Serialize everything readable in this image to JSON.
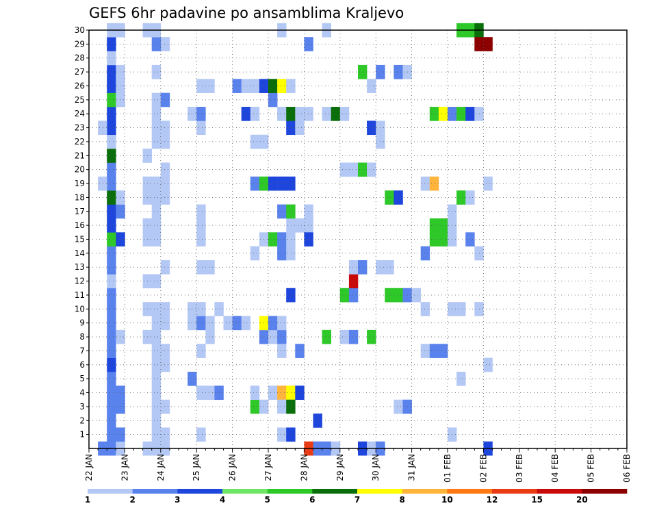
{
  "chart_data": {
    "type": "heatmap",
    "title": "GEFS 6hr padavine po ansamblima Kraljevo",
    "y_range": [
      0,
      30
    ],
    "y_ticks": [
      "1",
      "2",
      "3",
      "4",
      "5",
      "6",
      "7",
      "8",
      "9",
      "10",
      "11",
      "12",
      "13",
      "14",
      "15",
      "16",
      "17",
      "18",
      "19",
      "20",
      "21",
      "22",
      "23",
      "24",
      "25",
      "26",
      "27",
      "28",
      "29",
      "30"
    ],
    "x_unit": "6-hour step from 22 JAN 00 UTC",
    "x_range": [
      0,
      60
    ],
    "x_tick_labels": [
      "22 JAN",
      "23 JAN",
      "24 JAN",
      "25 JAN",
      "26 JAN",
      "27 JAN",
      "28 JAN",
      "29 JAN",
      "30 JAN",
      "31 JAN",
      "01 FEB",
      "02 FEB",
      "03 FEB",
      "04 FEB",
      "05 FEB",
      "06 FEB"
    ],
    "grid": true,
    "colorbar": {
      "labels": [
        "1",
        "2",
        "3",
        "4",
        "5",
        "6",
        "7",
        "8",
        "10",
        "12",
        "15",
        "20"
      ],
      "colors": [
        "#b4c8f5",
        "#5a82ec",
        "#1e46dc",
        "#6ee664",
        "#2ec828",
        "#0a6e0a",
        "#ffff00",
        "#ffb43c",
        "#ff7814",
        "#ea3c14",
        "#c80a0a",
        "#8c0000"
      ]
    },
    "cells_legend": "each cell = [time step, ensemble member, color class index 0-11]",
    "cells": [
      [
        1,
        0,
        1
      ],
      [
        2,
        0,
        1
      ],
      [
        3,
        0,
        0
      ],
      [
        2,
        1,
        1
      ],
      [
        3,
        1,
        1
      ],
      [
        2,
        2,
        1
      ],
      [
        2,
        3,
        1
      ],
      [
        3,
        3,
        1
      ],
      [
        2,
        4,
        1
      ],
      [
        3,
        4,
        1
      ],
      [
        2,
        5,
        1
      ],
      [
        2,
        6,
        2
      ],
      [
        2,
        7,
        1
      ],
      [
        2,
        8,
        1
      ],
      [
        3,
        8,
        0
      ],
      [
        2,
        9,
        1
      ],
      [
        2,
        10,
        1
      ],
      [
        2,
        11,
        1
      ],
      [
        2,
        12,
        0
      ],
      [
        2,
        13,
        1
      ],
      [
        2,
        14,
        1
      ],
      [
        2,
        15,
        4
      ],
      [
        3,
        15,
        2
      ],
      [
        2,
        16,
        2
      ],
      [
        2,
        17,
        2
      ],
      [
        3,
        17,
        1
      ],
      [
        2,
        18,
        5
      ],
      [
        3,
        18,
        0
      ],
      [
        2,
        19,
        1
      ],
      [
        1,
        19,
        0
      ],
      [
        2,
        20,
        1
      ],
      [
        2,
        21,
        5
      ],
      [
        2,
        22,
        0
      ],
      [
        2,
        23,
        2
      ],
      [
        1,
        23,
        0
      ],
      [
        2,
        24,
        2
      ],
      [
        2,
        25,
        4
      ],
      [
        3,
        25,
        0
      ],
      [
        2,
        26,
        2
      ],
      [
        3,
        26,
        0
      ],
      [
        2,
        27,
        2
      ],
      [
        3,
        27,
        0
      ],
      [
        2,
        28,
        0
      ],
      [
        2,
        29,
        2
      ],
      [
        2,
        30,
        0
      ],
      [
        3,
        30,
        0
      ],
      [
        6,
        0,
        0
      ],
      [
        7,
        0,
        0
      ],
      [
        8,
        0,
        0
      ],
      [
        7,
        1,
        0
      ],
      [
        8,
        1,
        0
      ],
      [
        7,
        2,
        0
      ],
      [
        7,
        3,
        0
      ],
      [
        8,
        3,
        0
      ],
      [
        7,
        4,
        0
      ],
      [
        7,
        5,
        0
      ],
      [
        7,
        6,
        0
      ],
      [
        8,
        6,
        0
      ],
      [
        7,
        7,
        0
      ],
      [
        8,
        7,
        0
      ],
      [
        6,
        8,
        0
      ],
      [
        7,
        8,
        0
      ],
      [
        7,
        9,
        0
      ],
      [
        8,
        9,
        0
      ],
      [
        6,
        10,
        0
      ],
      [
        7,
        10,
        0
      ],
      [
        8,
        10,
        0
      ],
      [
        6,
        12,
        0
      ],
      [
        7,
        12,
        0
      ],
      [
        8,
        13,
        0
      ],
      [
        6,
        15,
        0
      ],
      [
        7,
        15,
        0
      ],
      [
        6,
        16,
        0
      ],
      [
        7,
        16,
        0
      ],
      [
        7,
        17,
        0
      ],
      [
        6,
        18,
        0
      ],
      [
        7,
        18,
        0
      ],
      [
        8,
        18,
        0
      ],
      [
        6,
        19,
        0
      ],
      [
        7,
        19,
        0
      ],
      [
        8,
        19,
        0
      ],
      [
        8,
        20,
        0
      ],
      [
        6,
        21,
        0
      ],
      [
        7,
        22,
        0
      ],
      [
        8,
        22,
        0
      ],
      [
        7,
        23,
        0
      ],
      [
        8,
        23,
        0
      ],
      [
        7,
        24,
        0
      ],
      [
        7,
        25,
        0
      ],
      [
        8,
        25,
        1
      ],
      [
        7,
        27,
        0
      ],
      [
        8,
        29,
        0
      ],
      [
        7,
        29,
        1
      ],
      [
        6,
        30,
        0
      ],
      [
        7,
        30,
        0
      ],
      [
        12,
        1,
        0
      ],
      [
        12,
        4,
        0
      ],
      [
        13,
        4,
        0
      ],
      [
        14,
        4,
        1
      ],
      [
        11,
        5,
        1
      ],
      [
        12,
        7,
        0
      ],
      [
        13,
        8,
        0
      ],
      [
        11,
        9,
        0
      ],
      [
        12,
        9,
        1
      ],
      [
        13,
        9,
        0
      ],
      [
        11,
        10,
        0
      ],
      [
        12,
        10,
        0
      ],
      [
        14,
        10,
        0
      ],
      [
        12,
        13,
        0
      ],
      [
        13,
        13,
        0
      ],
      [
        12,
        15,
        0
      ],
      [
        12,
        16,
        0
      ],
      [
        12,
        17,
        0
      ],
      [
        12,
        23,
        0
      ],
      [
        11,
        24,
        0
      ],
      [
        12,
        24,
        1
      ],
      [
        12,
        26,
        0
      ],
      [
        13,
        26,
        0
      ],
      [
        15,
        9,
        0
      ],
      [
        16,
        9,
        1
      ],
      [
        17,
        9,
        0
      ],
      [
        17,
        24,
        2
      ],
      [
        18,
        24,
        0
      ],
      [
        16,
        26,
        1
      ],
      [
        17,
        26,
        0
      ],
      [
        18,
        3,
        4
      ],
      [
        19,
        3,
        0
      ],
      [
        18,
        4,
        0
      ],
      [
        20,
        4,
        0
      ],
      [
        21,
        4,
        7
      ],
      [
        22,
        4,
        6
      ],
      [
        23,
        4,
        2
      ],
      [
        21,
        3,
        0
      ],
      [
        22,
        3,
        5
      ],
      [
        21,
        1,
        0
      ],
      [
        22,
        1,
        2
      ],
      [
        19,
        8,
        1
      ],
      [
        20,
        8,
        0
      ],
      [
        21,
        8,
        1
      ],
      [
        19,
        9,
        6
      ],
      [
        20,
        9,
        1
      ],
      [
        21,
        9,
        0
      ],
      [
        21,
        7,
        0
      ],
      [
        23,
        7,
        1
      ],
      [
        22,
        11,
        2
      ],
      [
        18,
        14,
        0
      ],
      [
        21,
        14,
        1
      ],
      [
        22,
        14,
        0
      ],
      [
        19,
        15,
        0
      ],
      [
        20,
        15,
        4
      ],
      [
        21,
        15,
        1
      ],
      [
        22,
        15,
        0
      ],
      [
        22,
        16,
        0
      ],
      [
        23,
        16,
        0
      ],
      [
        24,
        16,
        0
      ],
      [
        24,
        15,
        2
      ],
      [
        21,
        17,
        1
      ],
      [
        22,
        17,
        4
      ],
      [
        24,
        17,
        0
      ],
      [
        18,
        19,
        1
      ],
      [
        19,
        19,
        4
      ],
      [
        20,
        19,
        2
      ],
      [
        21,
        19,
        2
      ],
      [
        22,
        19,
        2
      ],
      [
        18,
        22,
        0
      ],
      [
        19,
        22,
        0
      ],
      [
        22,
        23,
        2
      ],
      [
        23,
        23,
        0
      ],
      [
        21,
        24,
        0
      ],
      [
        22,
        24,
        5
      ],
      [
        23,
        24,
        0
      ],
      [
        24,
        24,
        0
      ],
      [
        26,
        24,
        0
      ],
      [
        27,
        24,
        5
      ],
      [
        28,
        24,
        0
      ],
      [
        20,
        25,
        1
      ],
      [
        18,
        26,
        0
      ],
      [
        19,
        26,
        2
      ],
      [
        20,
        26,
        5
      ],
      [
        21,
        26,
        6
      ],
      [
        22,
        26,
        0
      ],
      [
        24,
        29,
        1
      ],
      [
        21,
        30,
        0
      ],
      [
        25,
        2,
        2
      ],
      [
        24,
        0,
        9
      ],
      [
        25,
        0,
        1
      ],
      [
        26,
        0,
        1
      ],
      [
        27,
        0,
        0
      ],
      [
        26,
        8,
        4
      ],
      [
        28,
        8,
        0
      ],
      [
        29,
        8,
        1
      ],
      [
        28,
        11,
        4
      ],
      [
        29,
        11,
        1
      ],
      [
        31,
        8,
        4
      ],
      [
        29,
        12,
        10
      ],
      [
        29,
        13,
        0
      ],
      [
        30,
        13,
        1
      ],
      [
        32,
        13,
        0
      ],
      [
        33,
        13,
        0
      ],
      [
        28,
        20,
        0
      ],
      [
        29,
        20,
        0
      ],
      [
        30,
        20,
        4
      ],
      [
        31,
        20,
        0
      ],
      [
        30,
        27,
        4
      ],
      [
        32,
        27,
        1
      ],
      [
        34,
        27,
        1
      ],
      [
        35,
        27,
        0
      ],
      [
        31,
        26,
        0
      ],
      [
        31,
        23,
        2
      ],
      [
        32,
        23,
        0
      ],
      [
        32,
        22,
        0
      ],
      [
        30,
        0,
        2
      ],
      [
        31,
        0,
        0
      ],
      [
        32,
        0,
        1
      ],
      [
        26,
        30,
        0
      ],
      [
        34,
        3,
        0
      ],
      [
        35,
        3,
        1
      ],
      [
        33,
        11,
        4
      ],
      [
        34,
        11,
        4
      ],
      [
        35,
        11,
        1
      ],
      [
        36,
        11,
        0
      ],
      [
        33,
        18,
        4
      ],
      [
        34,
        18,
        2
      ],
      [
        37,
        14,
        1
      ],
      [
        38,
        15,
        4
      ],
      [
        39,
        15,
        4
      ],
      [
        40,
        15,
        0
      ],
      [
        38,
        16,
        4
      ],
      [
        39,
        16,
        4
      ],
      [
        40,
        16,
        0
      ],
      [
        40,
        17,
        0
      ],
      [
        37,
        10,
        0
      ],
      [
        40,
        10,
        0
      ],
      [
        41,
        10,
        0
      ],
      [
        43,
        10,
        0
      ],
      [
        37,
        7,
        0
      ],
      [
        38,
        7,
        1
      ],
      [
        39,
        7,
        1
      ],
      [
        41,
        5,
        0
      ],
      [
        44,
        6,
        0
      ],
      [
        40,
        1,
        0
      ],
      [
        37,
        19,
        0
      ],
      [
        38,
        19,
        7
      ],
      [
        44,
        19,
        0
      ],
      [
        41,
        18,
        4
      ],
      [
        42,
        18,
        0
      ],
      [
        42,
        15,
        1
      ],
      [
        43,
        14,
        0
      ],
      [
        38,
        24,
        4
      ],
      [
        39,
        24,
        6
      ],
      [
        40,
        24,
        1
      ],
      [
        41,
        24,
        4
      ],
      [
        42,
        24,
        2
      ],
      [
        43,
        24,
        0
      ],
      [
        41,
        30,
        4
      ],
      [
        42,
        30,
        4
      ],
      [
        43,
        30,
        5
      ],
      [
        43,
        29,
        11
      ],
      [
        44,
        29,
        11
      ],
      [
        44,
        0,
        2
      ]
    ]
  }
}
